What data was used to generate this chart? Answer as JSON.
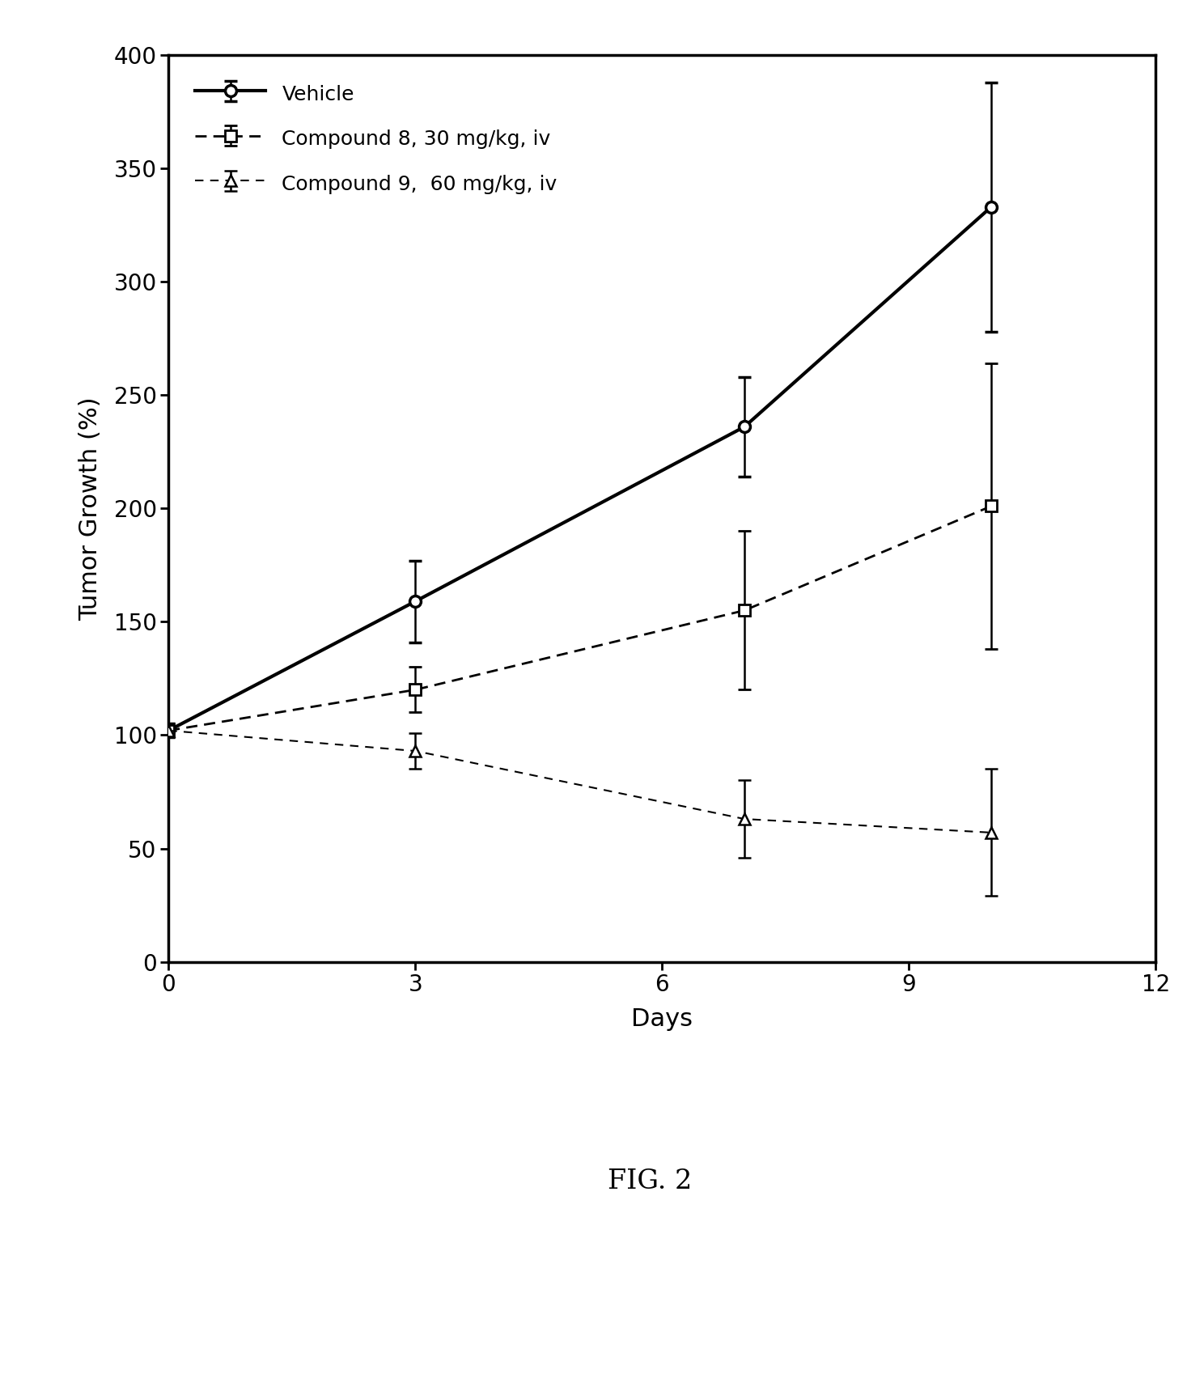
{
  "vehicle": {
    "x": [
      0,
      3,
      7,
      10
    ],
    "y": [
      102,
      159,
      236,
      333
    ],
    "yerr": [
      3,
      18,
      22,
      55
    ],
    "label": "Vehicle",
    "color": "#000000",
    "linestyle": "solid",
    "linewidth": 3.0,
    "marker": "o",
    "markersize": 10,
    "markerfacecolor": "white",
    "markeredgecolor": "#000000",
    "markeredgewidth": 2.5
  },
  "compound8": {
    "x": [
      0,
      3,
      7,
      10
    ],
    "y": [
      102,
      120,
      155,
      201
    ],
    "yerr": [
      3,
      10,
      35,
      63
    ],
    "label": "Compound 8, 30 mg/kg, iv",
    "color": "#000000",
    "linestyle": "dashed",
    "linewidth": 2.0,
    "marker": "s",
    "markersize": 10,
    "markerfacecolor": "white",
    "markeredgecolor": "#000000",
    "markeredgewidth": 2.0
  },
  "compound9": {
    "x": [
      0,
      3,
      7,
      10
    ],
    "y": [
      102,
      93,
      63,
      57
    ],
    "yerr": [
      3,
      8,
      17,
      28
    ],
    "label": "Compound 9,  60 mg/kg, iv",
    "color": "#000000",
    "linestyle": "dashed",
    "linewidth": 1.5,
    "marker": "^",
    "markersize": 10,
    "markerfacecolor": "white",
    "markeredgecolor": "#000000",
    "markeredgewidth": 1.8
  },
  "xlim": [
    0,
    12
  ],
  "ylim": [
    0,
    400
  ],
  "xticks": [
    0,
    3,
    6,
    9,
    12
  ],
  "yticks": [
    0,
    50,
    100,
    150,
    200,
    250,
    300,
    350,
    400
  ],
  "xlabel": "Days",
  "ylabel": "Tumor Growth (%)",
  "figcaption": "FIG. 2",
  "background_color": "#ffffff",
  "spine_color": "#000000",
  "tick_fontsize": 20,
  "label_fontsize": 22,
  "legend_fontsize": 18,
  "caption_fontsize": 24
}
